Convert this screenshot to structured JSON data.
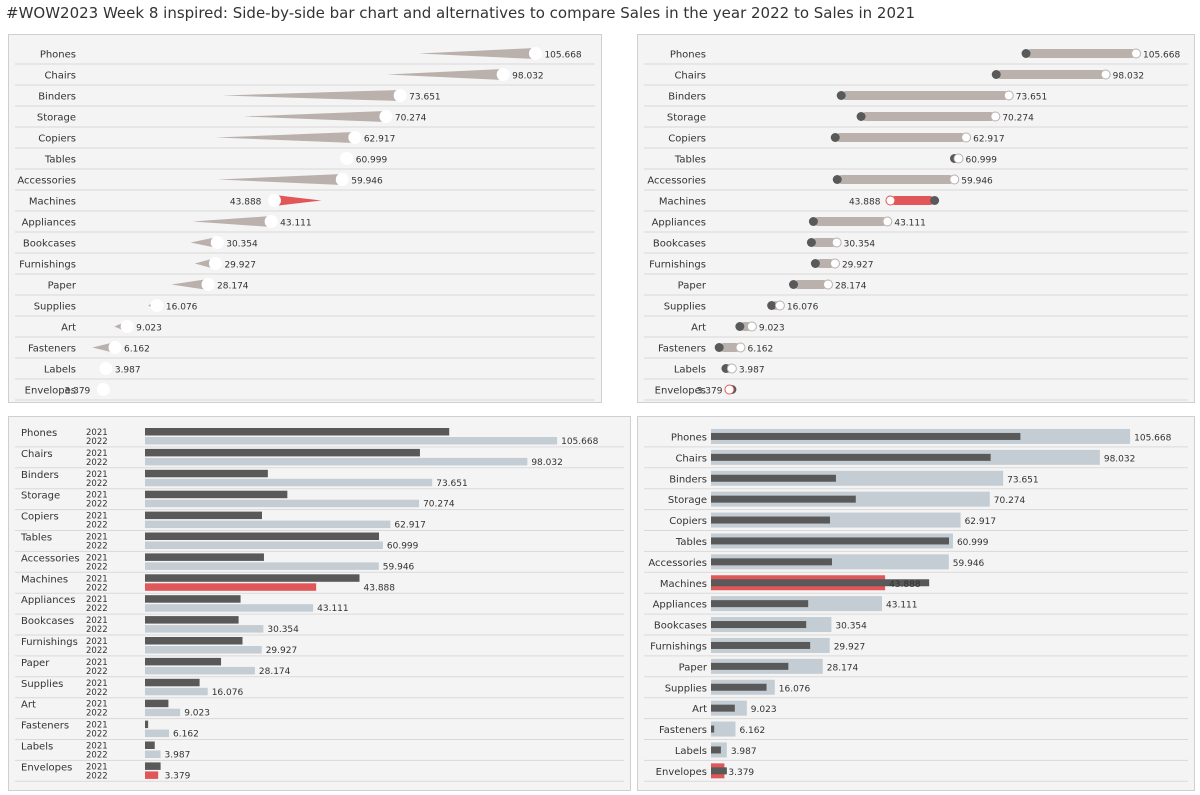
{
  "title": "#WOW2023 Week 8 inspired:  Side-by-side bar chart and alternatives to compare Sales in the year 2022  to Sales in 2021",
  "colors": {
    "y2021": "#595959",
    "y2022": "#c4cdd3",
    "decline": "#e15759",
    "connector": "#bab0ac",
    "panel_bg": "#f4f4f4",
    "row_line": "#d9d9d9",
    "text": "#333333"
  },
  "years": [
    "2021",
    "2022"
  ],
  "chart_data": [
    {
      "type": "bar",
      "variant": "wedge",
      "title": "",
      "categories": [
        "Phones",
        "Chairs",
        "Binders",
        "Storage",
        "Copiers",
        "Tables",
        "Accessories",
        "Machines",
        "Appliances",
        "Bookcases",
        "Furnishings",
        "Paper",
        "Supplies",
        "Art",
        "Fasteners",
        "Labels",
        "Envelopes"
      ],
      "series": [
        {
          "name": "2021",
          "values": [
            78.0,
            70.5,
            31.5,
            36.5,
            30.0,
            60.0,
            30.5,
            55.0,
            24.5,
            24.0,
            25.0,
            19.5,
            14.0,
            6.0,
            0.8,
            2.5,
            4.0
          ]
        },
        {
          "name": "2022",
          "values": [
            105.668,
            98.032,
            73.651,
            70.274,
            62.917,
            60.999,
            59.946,
            43.888,
            43.111,
            30.354,
            29.927,
            28.174,
            16.076,
            9.023,
            6.162,
            3.987,
            3.379
          ]
        }
      ],
      "labels": [
        "105.668",
        "98.032",
        "73.651",
        "70.274",
        "62.917",
        "60.999",
        "59.946",
        "43.888",
        "43.111",
        "30.354",
        "29.927",
        "28.174",
        "16.076",
        "9.023",
        "6.162",
        "3.987",
        "3.379"
      ],
      "xlim": [
        0,
        120
      ]
    },
    {
      "type": "dumbbell",
      "title": "",
      "categories": [
        "Phones",
        "Chairs",
        "Binders",
        "Storage",
        "Copiers",
        "Tables",
        "Accessories",
        "Machines",
        "Appliances",
        "Bookcases",
        "Furnishings",
        "Paper",
        "Supplies",
        "Art",
        "Fasteners",
        "Labels",
        "Envelopes"
      ],
      "series": [
        {
          "name": "2021",
          "values": [
            78.0,
            70.5,
            31.5,
            36.5,
            30.0,
            60.0,
            30.5,
            55.0,
            24.5,
            24.0,
            25.0,
            19.5,
            14.0,
            6.0,
            0.8,
            2.5,
            4.0
          ]
        },
        {
          "name": "2022",
          "values": [
            105.668,
            98.032,
            73.651,
            70.274,
            62.917,
            60.999,
            59.946,
            43.888,
            43.111,
            30.354,
            29.927,
            28.174,
            16.076,
            9.023,
            6.162,
            3.987,
            3.379
          ]
        }
      ],
      "labels": [
        "105.668",
        "98.032",
        "73.651",
        "70.274",
        "62.917",
        "60.999",
        "59.946",
        "43.888",
        "43.111",
        "30.354",
        "29.927",
        "28.174",
        "16.076",
        "9.023",
        "6.162",
        "3.987",
        "3.379"
      ],
      "xlim": [
        0,
        120
      ]
    },
    {
      "type": "bar",
      "variant": "side-by-side",
      "title": "",
      "categories": [
        "Phones",
        "Chairs",
        "Binders",
        "Storage",
        "Copiers",
        "Tables",
        "Accessories",
        "Machines",
        "Appliances",
        "Bookcases",
        "Furnishings",
        "Paper",
        "Supplies",
        "Art",
        "Fasteners",
        "Labels",
        "Envelopes"
      ],
      "series": [
        {
          "name": "2021",
          "values": [
            78.0,
            70.5,
            31.5,
            36.5,
            30.0,
            60.0,
            30.5,
            55.0,
            24.5,
            24.0,
            25.0,
            19.5,
            14.0,
            6.0,
            0.8,
            2.5,
            4.0
          ]
        },
        {
          "name": "2022",
          "values": [
            105.668,
            98.032,
            73.651,
            70.274,
            62.917,
            60.999,
            59.946,
            43.888,
            43.111,
            30.354,
            29.927,
            28.174,
            16.076,
            9.023,
            6.162,
            3.987,
            3.379
          ]
        }
      ],
      "labels": [
        "105.668",
        "98.032",
        "73.651",
        "70.274",
        "62.917",
        "60.999",
        "59.946",
        "43.888",
        "43.111",
        "30.354",
        "29.927",
        "28.174",
        "16.076",
        "9.023",
        "6.162",
        "3.987",
        "3.379"
      ],
      "xlim": [
        0,
        120
      ]
    },
    {
      "type": "bar",
      "variant": "bar-in-bar",
      "title": "",
      "categories": [
        "Phones",
        "Chairs",
        "Binders",
        "Storage",
        "Copiers",
        "Tables",
        "Accessories",
        "Machines",
        "Appliances",
        "Bookcases",
        "Furnishings",
        "Paper",
        "Supplies",
        "Art",
        "Fasteners",
        "Labels",
        "Envelopes"
      ],
      "series": [
        {
          "name": "2021",
          "values": [
            78.0,
            70.5,
            31.5,
            36.5,
            30.0,
            60.0,
            30.5,
            55.0,
            24.5,
            24.0,
            25.0,
            19.5,
            14.0,
            6.0,
            0.8,
            2.5,
            4.0
          ]
        },
        {
          "name": "2022",
          "values": [
            105.668,
            98.032,
            73.651,
            70.274,
            62.917,
            60.999,
            59.946,
            43.888,
            43.111,
            30.354,
            29.927,
            28.174,
            16.076,
            9.023,
            6.162,
            3.987,
            3.379
          ]
        }
      ],
      "labels": [
        "105.668",
        "98.032",
        "73.651",
        "70.274",
        "62.917",
        "60.999",
        "59.946",
        "43.888",
        "43.111",
        "30.354",
        "29.927",
        "28.174",
        "16.076",
        "9.023",
        "6.162",
        "3.987",
        "3.379"
      ],
      "xlim": [
        0,
        120
      ]
    }
  ]
}
